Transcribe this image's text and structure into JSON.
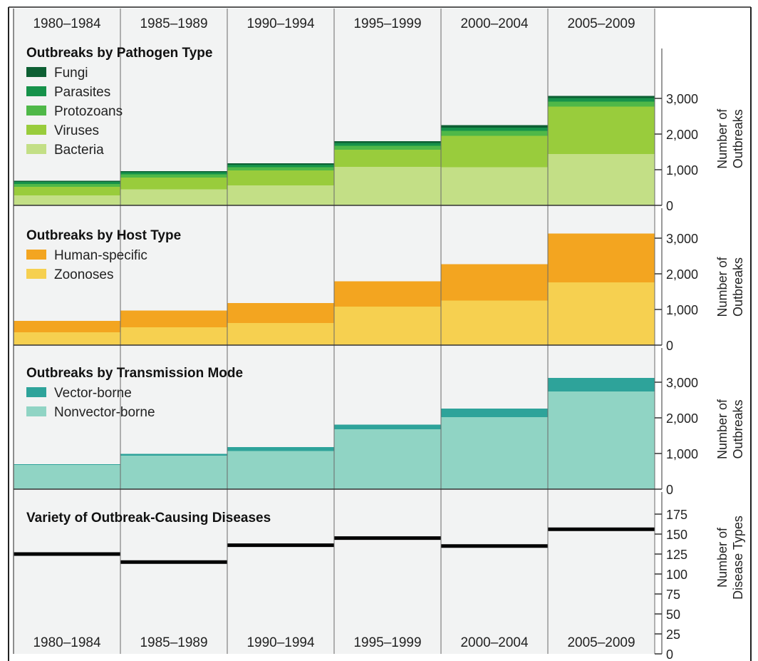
{
  "periods": [
    "1980–1984",
    "1985–1989",
    "1990–1994",
    "1995–1999",
    "2000–2004",
    "2005–2009"
  ],
  "chart_data": [
    {
      "type": "bar",
      "stacked": true,
      "title": "Outbreaks by Pathogen Type",
      "ylabel": "Number of Outbreaks",
      "ylim": [
        0,
        3200
      ],
      "yticks": [
        0,
        1000,
        2000,
        3000
      ],
      "ytick_labels": [
        "0",
        "1,000",
        "2,000",
        "3,000"
      ],
      "legend_placement": "top-left",
      "series": [
        {
          "name": "Bacteria",
          "color": "#c3df86",
          "values": [
            280,
            450,
            560,
            1080,
            1070,
            1440
          ]
        },
        {
          "name": "Viruses",
          "color": "#99cc3c",
          "values": [
            240,
            330,
            420,
            480,
            880,
            1330
          ]
        },
        {
          "name": "Protozoans",
          "color": "#4fb848",
          "values": [
            80,
            90,
            90,
            110,
            140,
            140
          ]
        },
        {
          "name": "Parasites",
          "color": "#16924a",
          "values": [
            60,
            60,
            70,
            80,
            90,
            100
          ]
        },
        {
          "name": "Fungi",
          "color": "#0d5f33",
          "values": [
            30,
            30,
            40,
            50,
            70,
            60
          ]
        }
      ]
    },
    {
      "type": "bar",
      "stacked": true,
      "title": "Outbreaks by Host Type",
      "ylabel": "Number of Outbreaks",
      "ylim": [
        0,
        3200
      ],
      "yticks": [
        0,
        1000,
        2000,
        3000
      ],
      "ytick_labels": [
        "0",
        "1,000",
        "2,000",
        "3,000"
      ],
      "legend_placement": "top-left",
      "series": [
        {
          "name": "Zoonoses",
          "color": "#f6d050",
          "values": [
            360,
            500,
            620,
            1080,
            1250,
            1760
          ]
        },
        {
          "name": "Human-specific",
          "color": "#f3a520",
          "values": [
            320,
            470,
            560,
            710,
            1020,
            1370
          ]
        }
      ]
    },
    {
      "type": "bar",
      "stacked": true,
      "title": "Outbreaks by Transmission Mode",
      "ylabel": "Number of Outbreaks",
      "ylim": [
        0,
        3200
      ],
      "yticks": [
        0,
        1000,
        2000,
        3000
      ],
      "ytick_labels": [
        "0",
        "1,000",
        "2,000",
        "3,000"
      ],
      "legend_placement": "top-left",
      "series": [
        {
          "name": "Nonvector-borne",
          "color": "#90d4c4",
          "values": [
            680,
            940,
            1070,
            1680,
            2020,
            2740
          ]
        },
        {
          "name": "Vector-borne",
          "color": "#2ea39a",
          "values": [
            20,
            50,
            110,
            130,
            240,
            380
          ]
        }
      ]
    },
    {
      "type": "step",
      "title": "Variety of Outbreak-Causing Diseases",
      "ylabel": "Number of Disease Types",
      "ylim": [
        0,
        175
      ],
      "yticks": [
        0,
        25,
        50,
        75,
        100,
        125,
        150,
        175
      ],
      "series": [
        {
          "name": "",
          "color": "#000000",
          "values": [
            125,
            115,
            136,
            145,
            135,
            156
          ]
        }
      ]
    }
  ]
}
